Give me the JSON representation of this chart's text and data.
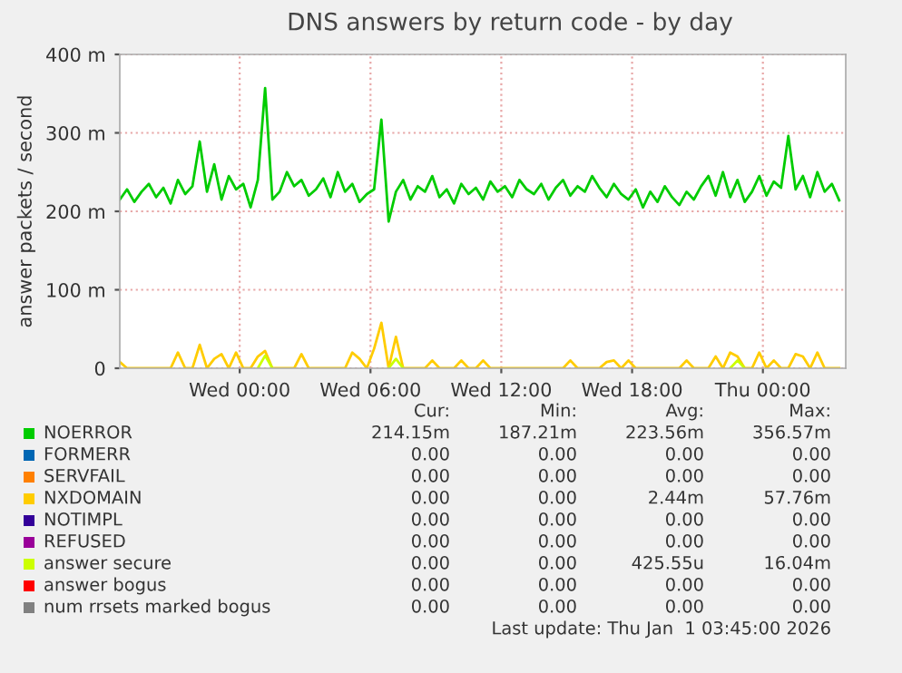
{
  "chart_data": {
    "type": "line",
    "title": "DNS answers by return code - by day",
    "ylabel": "answer packets / second",
    "x": [
      "2025-12-30T18:30",
      "2025-12-30T18:50",
      "2025-12-30T19:10",
      "2025-12-30T19:30",
      "2025-12-30T19:50",
      "2025-12-30T20:10",
      "2025-12-30T20:30",
      "2025-12-30T20:50",
      "2025-12-30T21:10",
      "2025-12-30T21:30",
      "2025-12-30T21:50",
      "2025-12-30T22:10",
      "2025-12-30T22:30",
      "2025-12-30T22:50",
      "2025-12-30T23:10",
      "2025-12-30T23:30",
      "2025-12-30T23:50",
      "2025-12-31T00:10",
      "2025-12-31T00:30",
      "2025-12-31T00:50",
      "2025-12-31T01:10",
      "2025-12-31T01:30",
      "2025-12-31T01:50",
      "2025-12-31T02:10",
      "2025-12-31T02:30",
      "2025-12-31T02:50",
      "2025-12-31T03:10",
      "2025-12-31T03:30",
      "2025-12-31T03:50",
      "2025-12-31T04:10",
      "2025-12-31T04:30",
      "2025-12-31T04:50",
      "2025-12-31T05:10",
      "2025-12-31T05:30",
      "2025-12-31T05:50",
      "2025-12-31T06:10",
      "2025-12-31T06:30",
      "2025-12-31T06:50",
      "2025-12-31T07:10",
      "2025-12-31T07:30",
      "2025-12-31T07:50",
      "2025-12-31T08:10",
      "2025-12-31T08:30",
      "2025-12-31T08:50",
      "2025-12-31T09:10",
      "2025-12-31T09:30",
      "2025-12-31T09:50",
      "2025-12-31T10:10",
      "2025-12-31T10:30",
      "2025-12-31T10:50",
      "2025-12-31T11:10",
      "2025-12-31T11:30",
      "2025-12-31T11:50",
      "2025-12-31T12:10",
      "2025-12-31T12:30",
      "2025-12-31T12:50",
      "2025-12-31T13:10",
      "2025-12-31T13:30",
      "2025-12-31T13:50",
      "2025-12-31T14:10",
      "2025-12-31T14:30",
      "2025-12-31T14:50",
      "2025-12-31T15:10",
      "2025-12-31T15:30",
      "2025-12-31T15:50",
      "2025-12-31T16:10",
      "2025-12-31T16:30",
      "2025-12-31T16:50",
      "2025-12-31T17:10",
      "2025-12-31T17:30",
      "2025-12-31T17:50",
      "2025-12-31T18:10",
      "2025-12-31T18:30",
      "2025-12-31T18:50",
      "2025-12-31T19:10",
      "2025-12-31T19:30",
      "2025-12-31T19:50",
      "2025-12-31T20:10",
      "2025-12-31T20:30",
      "2025-12-31T20:50",
      "2025-12-31T21:10",
      "2025-12-31T21:30",
      "2025-12-31T21:50",
      "2025-12-31T22:10",
      "2025-12-31T22:30",
      "2025-12-31T22:50",
      "2025-12-31T23:10",
      "2025-12-31T23:30",
      "2025-12-31T23:50",
      "2026-01-01T00:10",
      "2026-01-01T00:30",
      "2026-01-01T00:50",
      "2026-01-01T01:10",
      "2026-01-01T01:30",
      "2026-01-01T01:50",
      "2026-01-01T02:10",
      "2026-01-01T02:30",
      "2026-01-01T02:50",
      "2026-01-01T03:10",
      "2026-01-01T03:30"
    ],
    "series": [
      {
        "name": "NOERROR",
        "color": "#00cc00",
        "values": [
          215,
          228,
          212,
          225,
          235,
          218,
          230,
          210,
          240,
          222,
          232,
          289,
          225,
          260,
          215,
          245,
          228,
          235,
          205,
          240,
          357,
          215,
          225,
          250,
          232,
          240,
          220,
          228,
          242,
          218,
          250,
          225,
          235,
          212,
          222,
          228,
          317,
          187,
          225,
          240,
          215,
          232,
          225,
          245,
          218,
          228,
          210,
          235,
          222,
          230,
          215,
          238,
          225,
          232,
          218,
          240,
          228,
          222,
          235,
          215,
          230,
          240,
          220,
          232,
          225,
          245,
          230,
          218,
          235,
          222,
          215,
          228,
          205,
          225,
          212,
          232,
          218,
          208,
          225,
          215,
          232,
          245,
          220,
          250,
          218,
          240,
          212,
          225,
          245,
          220,
          238,
          230,
          296,
          228,
          245,
          218,
          250,
          225,
          235,
          214
        ]
      },
      {
        "name": "FORMERR",
        "color": "#0066b3",
        "values": [
          null,
          null,
          null,
          null,
          null,
          null,
          null,
          null,
          null,
          null,
          null,
          null,
          null,
          null,
          null,
          null,
          null,
          null,
          null,
          null,
          null,
          null,
          null,
          null,
          null,
          null,
          null,
          null,
          null,
          null,
          null,
          null,
          null,
          null,
          null,
          null,
          null,
          null,
          null,
          null,
          null,
          null,
          null,
          null,
          null,
          null,
          null,
          null,
          null,
          null,
          null,
          null,
          null,
          null,
          null,
          null,
          null,
          null,
          null,
          null,
          null,
          null,
          null,
          null,
          null,
          null,
          null,
          null,
          null,
          null,
          null,
          null,
          null,
          null,
          null,
          null,
          null,
          null,
          null,
          null,
          null,
          null,
          null,
          null,
          null,
          null,
          null,
          null,
          null,
          null,
          null,
          null,
          null,
          null,
          null,
          null,
          null,
          null,
          null,
          null
        ]
      },
      {
        "name": "SERVFAIL",
        "color": "#ff8000",
        "values": [
          null,
          null,
          null,
          null,
          null,
          null,
          null,
          null,
          null,
          null,
          null,
          null,
          null,
          null,
          null,
          null,
          null,
          null,
          null,
          null,
          null,
          null,
          null,
          null,
          null,
          null,
          null,
          null,
          null,
          null,
          null,
          null,
          null,
          null,
          null,
          null,
          null,
          null,
          null,
          null,
          null,
          null,
          null,
          null,
          null,
          null,
          null,
          null,
          null,
          null,
          null,
          null,
          null,
          null,
          null,
          null,
          null,
          null,
          null,
          null,
          null,
          null,
          null,
          null,
          null,
          null,
          null,
          null,
          null,
          null,
          null,
          null,
          null,
          null,
          null,
          null,
          null,
          null,
          null,
          null,
          null,
          null,
          null,
          null,
          null,
          null,
          null,
          null,
          null,
          null,
          null,
          null,
          null,
          null,
          null,
          null,
          null,
          null,
          null,
          null
        ]
      },
      {
        "name": "NXDOMAIN",
        "color": "#ffcc00",
        "values": [
          8,
          0,
          0,
          0,
          0,
          0,
          0,
          0,
          20,
          0,
          0,
          30,
          0,
          12,
          18,
          0,
          20,
          0,
          0,
          15,
          22,
          0,
          0,
          0,
          0,
          18,
          0,
          0,
          0,
          0,
          0,
          0,
          20,
          12,
          0,
          25,
          58,
          0,
          40,
          0,
          0,
          0,
          0,
          10,
          0,
          0,
          0,
          10,
          0,
          0,
          10,
          0,
          0,
          0,
          0,
          0,
          0,
          0,
          0,
          0,
          0,
          0,
          10,
          0,
          0,
          0,
          0,
          8,
          10,
          0,
          10,
          0,
          0,
          0,
          0,
          0,
          0,
          0,
          10,
          0,
          0,
          0,
          15,
          0,
          20,
          15,
          0,
          0,
          20,
          0,
          10,
          0,
          0,
          18,
          15,
          0,
          20,
          0,
          0,
          0
        ]
      },
      {
        "name": "NOTIMPL",
        "color": "#330099",
        "values": [
          null,
          null,
          null,
          null,
          null,
          null,
          null,
          null,
          null,
          null,
          null,
          null,
          null,
          null,
          null,
          null,
          null,
          null,
          null,
          null,
          null,
          null,
          null,
          null,
          null,
          null,
          null,
          null,
          null,
          null,
          null,
          null,
          null,
          null,
          null,
          null,
          null,
          null,
          null,
          null,
          null,
          null,
          null,
          null,
          null,
          null,
          null,
          null,
          null,
          null,
          null,
          null,
          null,
          null,
          null,
          null,
          null,
          null,
          null,
          null,
          null,
          null,
          null,
          null,
          null,
          null,
          null,
          null,
          null,
          null,
          null,
          null,
          null,
          null,
          null,
          null,
          null,
          null,
          null,
          null,
          null,
          null,
          null,
          null,
          null,
          null,
          null,
          null,
          null,
          null,
          null,
          null,
          null,
          null,
          null,
          null,
          null,
          null,
          null,
          null
        ]
      },
      {
        "name": "REFUSED",
        "color": "#990099",
        "values": [
          null,
          null,
          null,
          null,
          null,
          null,
          null,
          null,
          null,
          null,
          null,
          null,
          null,
          null,
          null,
          null,
          null,
          null,
          null,
          null,
          null,
          null,
          null,
          null,
          null,
          null,
          null,
          null,
          null,
          null,
          null,
          null,
          null,
          null,
          null,
          null,
          null,
          null,
          null,
          null,
          null,
          null,
          null,
          null,
          null,
          null,
          null,
          null,
          null,
          null,
          null,
          null,
          null,
          null,
          null,
          null,
          null,
          null,
          null,
          null,
          null,
          null,
          null,
          null,
          null,
          null,
          null,
          null,
          null,
          null,
          null,
          null,
          null,
          null,
          null,
          null,
          null,
          null,
          null,
          null,
          null,
          null,
          null,
          null,
          null,
          null,
          null,
          null,
          null,
          null,
          null,
          null,
          null,
          null,
          null,
          null,
          null,
          null,
          null,
          null
        ]
      },
      {
        "name": "answer secure",
        "color": "#ccff00",
        "values": [
          null,
          null,
          null,
          null,
          null,
          null,
          null,
          null,
          null,
          null,
          null,
          null,
          null,
          null,
          null,
          null,
          null,
          null,
          null,
          0,
          16,
          0,
          null,
          null,
          null,
          null,
          null,
          null,
          null,
          null,
          null,
          null,
          null,
          null,
          null,
          null,
          null,
          0,
          12,
          0,
          null,
          null,
          null,
          null,
          null,
          null,
          null,
          null,
          null,
          null,
          null,
          null,
          null,
          null,
          null,
          null,
          null,
          null,
          null,
          null,
          null,
          null,
          null,
          null,
          null,
          null,
          null,
          null,
          null,
          null,
          null,
          null,
          null,
          null,
          null,
          null,
          null,
          null,
          null,
          null,
          null,
          null,
          null,
          null,
          0,
          10,
          0,
          null,
          null,
          null,
          null,
          null,
          null,
          null,
          null,
          null,
          null,
          null,
          null,
          null
        ]
      },
      {
        "name": "answer bogus",
        "color": "#ff0000",
        "values": [
          null,
          null,
          null,
          null,
          null,
          null,
          null,
          null,
          null,
          null,
          null,
          null,
          null,
          null,
          null,
          null,
          null,
          null,
          null,
          null,
          null,
          null,
          null,
          null,
          null,
          null,
          null,
          null,
          null,
          null,
          null,
          null,
          null,
          null,
          null,
          null,
          null,
          null,
          null,
          null,
          null,
          null,
          null,
          null,
          null,
          null,
          null,
          null,
          null,
          null,
          null,
          null,
          null,
          null,
          null,
          null,
          null,
          null,
          null,
          null,
          null,
          null,
          null,
          null,
          null,
          null,
          null,
          null,
          null,
          null,
          null,
          null,
          null,
          null,
          null,
          null,
          null,
          null,
          null,
          null,
          null,
          null,
          null,
          null,
          null,
          null,
          null,
          null,
          null,
          null,
          null,
          null,
          null,
          null,
          null,
          null,
          null,
          null,
          null,
          null
        ]
      },
      {
        "name": "num rrsets marked bogus",
        "color": "#808080",
        "values": [
          null,
          null,
          null,
          null,
          null,
          null,
          null,
          null,
          null,
          null,
          null,
          null,
          null,
          null,
          null,
          null,
          null,
          null,
          null,
          null,
          null,
          null,
          null,
          null,
          null,
          null,
          null,
          null,
          null,
          null,
          null,
          null,
          null,
          null,
          null,
          null,
          null,
          null,
          null,
          null,
          null,
          null,
          null,
          null,
          null,
          null,
          null,
          null,
          null,
          null,
          null,
          null,
          null,
          null,
          null,
          null,
          null,
          null,
          null,
          null,
          null,
          null,
          null,
          null,
          null,
          null,
          null,
          null,
          null,
          null,
          null,
          null,
          null,
          null,
          null,
          null,
          null,
          null,
          null,
          null,
          null,
          null,
          null,
          null,
          null,
          null,
          null,
          null,
          null,
          null,
          null,
          null,
          null,
          null,
          null,
          null,
          null,
          null,
          null,
          null
        ]
      }
    ],
    "xlim": [
      "2025-12-30T18:30",
      "2026-01-01T03:48"
    ],
    "ylim": [
      0,
      400
    ],
    "xticks": [
      {
        "value": "2025-12-31T00:00",
        "label": "Wed 00:00"
      },
      {
        "value": "2025-12-31T06:00",
        "label": "Wed 06:00"
      },
      {
        "value": "2025-12-31T12:00",
        "label": "Wed 12:00"
      },
      {
        "value": "2025-12-31T18:00",
        "label": "Wed 18:00"
      },
      {
        "value": "2026-01-01T00:00",
        "label": "Thu 00:00"
      }
    ],
    "yticks": [
      0,
      {
        "value": 100,
        "label": "100 m"
      },
      {
        "value": 200,
        "label": "200 m"
      },
      {
        "value": 300,
        "label": "300 m"
      },
      {
        "value": 400,
        "label": "400 m"
      }
    ],
    "grid": true,
    "legend": "bottom",
    "marker": "none",
    "line_style": "solid",
    "annotations": [
      "Cur:",
      "Min:",
      "Avg:",
      "Max:",
      "214.15m",
      "187.21m",
      "223.56m",
      "356.57m",
      "0.00",
      "0.00",
      "0.00",
      "0.00",
      "0.00",
      "0.00",
      "0.00",
      "0.00",
      "0.00",
      "0.00",
      "2.44m",
      "57.76m",
      "0.00",
      "0.00",
      "0.00",
      "0.00",
      "0.00",
      "0.00",
      "0.00",
      "0.00",
      "0.00",
      "0.00",
      "425.55u",
      "16.04m",
      "0.00",
      "0.00",
      "0.00",
      "0.00",
      "0.00",
      "0.00",
      "0.00",
      "0.00",
      "Last update: Thu Jan  1 03:45:00 2026"
    ]
  }
}
